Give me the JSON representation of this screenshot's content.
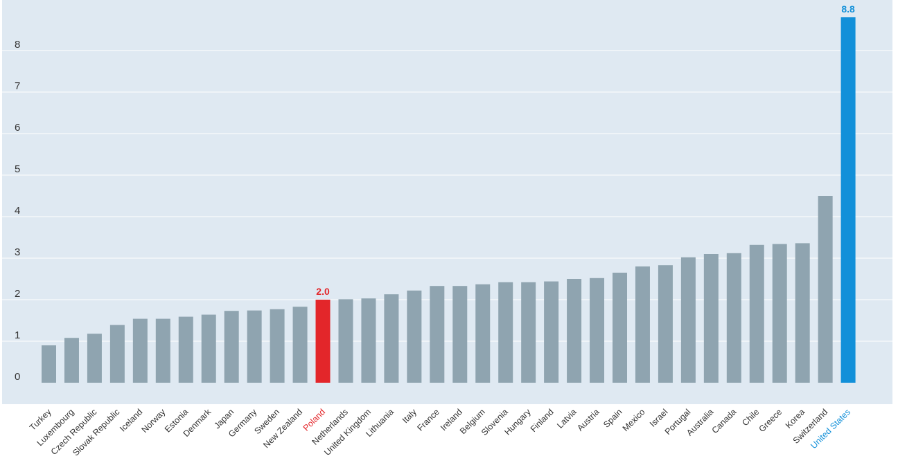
{
  "chart_data": {
    "type": "bar",
    "categories": [
      "Turkey",
      "Luxembourg",
      "Czech Republic",
      "Slovak Republic",
      "Iceland",
      "Norway",
      "Estonia",
      "Denmark",
      "Japan",
      "Germany",
      "Sweden",
      "New Zealand",
      "Poland",
      "Netherlands",
      "United Kingdom",
      "Lithuania",
      "Italy",
      "France",
      "Ireland",
      "Belgium",
      "Slovenia",
      "Hungary",
      "Finland",
      "Latvia",
      "Austria",
      "Spain",
      "Mexico",
      "Israel",
      "Portugal",
      "Australia",
      "Canada",
      "Chile",
      "Greece",
      "Korea",
      "Switzerland",
      "United States"
    ],
    "values": [
      0.9,
      1.08,
      1.18,
      1.39,
      1.54,
      1.54,
      1.59,
      1.64,
      1.73,
      1.74,
      1.77,
      1.83,
      2.0,
      2.01,
      2.03,
      2.13,
      2.22,
      2.33,
      2.33,
      2.37,
      2.42,
      2.42,
      2.44,
      2.5,
      2.52,
      2.65,
      2.8,
      2.83,
      3.02,
      3.1,
      3.12,
      3.32,
      3.34,
      3.36,
      4.5,
      8.8
    ],
    "ylim": [
      0,
      9
    ],
    "yticks": [
      0,
      1,
      2,
      3,
      4,
      5,
      6,
      7,
      8
    ],
    "grid": true,
    "highlights": [
      {
        "category": "Poland",
        "label": "2.0",
        "color": "#e3262a"
      },
      {
        "category": "United States",
        "label": "8.8",
        "color": "#1290d9"
      }
    ],
    "default_color": "#8fa4b0",
    "background_color": "#dfe9f2",
    "grid_color": "#ffffff"
  }
}
